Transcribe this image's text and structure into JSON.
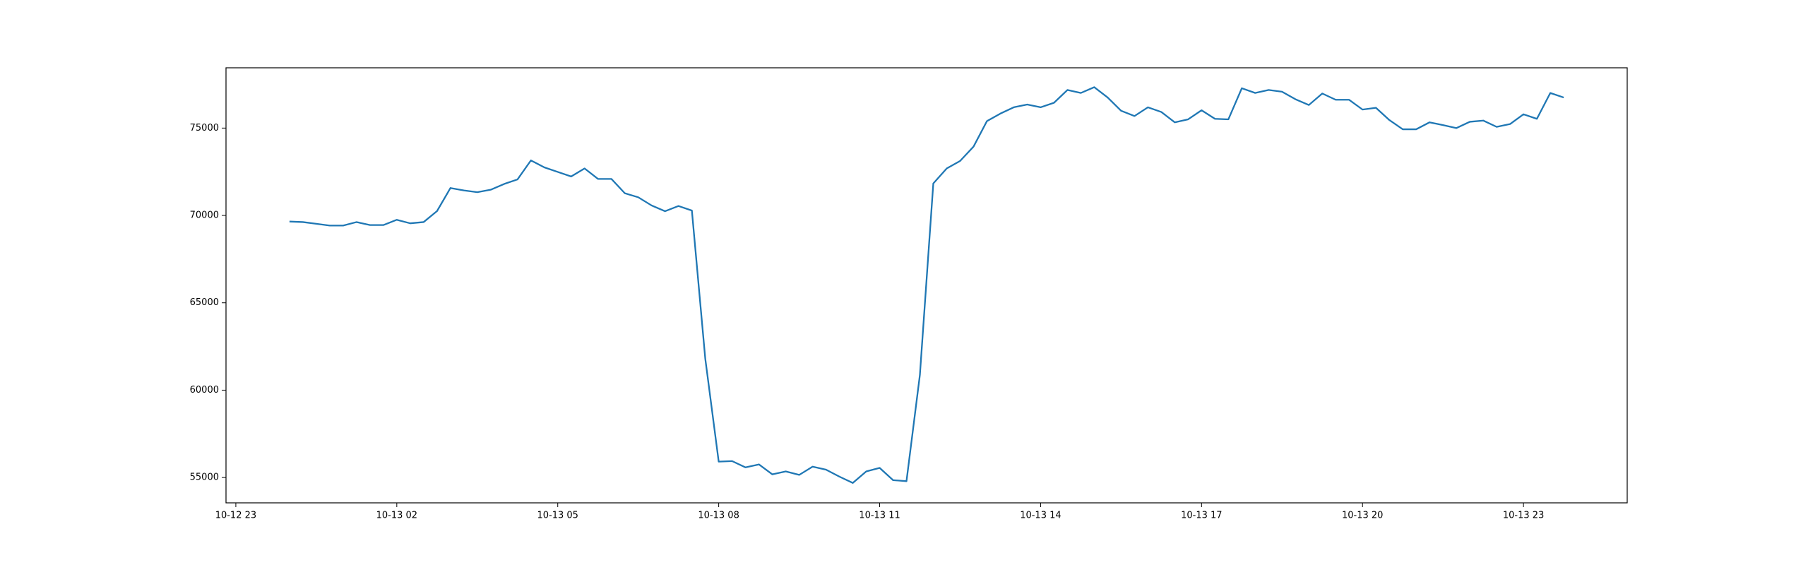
{
  "chart_data": {
    "type": "line",
    "x": [
      "10-13 00:00",
      "10-13 00:15",
      "10-13 00:30",
      "10-13 00:45",
      "10-13 01:00",
      "10-13 01:15",
      "10-13 01:30",
      "10-13 01:45",
      "10-13 02:00",
      "10-13 02:15",
      "10-13 02:30",
      "10-13 02:45",
      "10-13 03:00",
      "10-13 03:15",
      "10-13 03:30",
      "10-13 03:45",
      "10-13 04:00",
      "10-13 04:15",
      "10-13 04:30",
      "10-13 04:45",
      "10-13 05:00",
      "10-13 05:15",
      "10-13 05:30",
      "10-13 05:45",
      "10-13 06:00",
      "10-13 06:15",
      "10-13 06:30",
      "10-13 06:45",
      "10-13 07:00",
      "10-13 07:15",
      "10-13 07:30",
      "10-13 07:45",
      "10-13 08:00",
      "10-13 08:15",
      "10-13 08:30",
      "10-13 08:45",
      "10-13 09:00",
      "10-13 09:15",
      "10-13 09:30",
      "10-13 09:45",
      "10-13 10:00",
      "10-13 10:15",
      "10-13 10:30",
      "10-13 10:45",
      "10-13 11:00",
      "10-13 11:15",
      "10-13 11:30",
      "10-13 11:45",
      "10-13 12:00",
      "10-13 12:15",
      "10-13 12:30",
      "10-13 12:45",
      "10-13 13:00",
      "10-13 13:15",
      "10-13 13:30",
      "10-13 13:45",
      "10-13 14:00",
      "10-13 14:15",
      "10-13 14:30",
      "10-13 14:45",
      "10-13 15:00",
      "10-13 15:15",
      "10-13 15:30",
      "10-13 15:45",
      "10-13 16:00",
      "10-13 16:15",
      "10-13 16:30",
      "10-13 16:45",
      "10-13 17:00",
      "10-13 17:15",
      "10-13 17:30",
      "10-13 17:45",
      "10-13 18:00",
      "10-13 18:15",
      "10-13 18:30",
      "10-13 18:45",
      "10-13 19:00",
      "10-13 19:15",
      "10-13 19:30",
      "10-13 19:45",
      "10-13 20:00",
      "10-13 20:15",
      "10-13 20:30",
      "10-13 20:45",
      "10-13 21:00",
      "10-13 21:15",
      "10-13 21:30",
      "10-13 21:45",
      "10-13 22:00",
      "10-13 22:15",
      "10-13 22:30",
      "10-13 22:45",
      "10-13 23:00",
      "10-13 23:15",
      "10-13 23:30",
      "10-13 23:45"
    ],
    "series": [
      {
        "color": "#1f77b4",
        "values": [
          69650,
          69620,
          69520,
          69420,
          69420,
          69620,
          69450,
          69450,
          69750,
          69550,
          69620,
          70250,
          71570,
          71430,
          71330,
          71470,
          71800,
          72060,
          73150,
          72750,
          72490,
          72230,
          72690,
          72090,
          72090,
          71270,
          71040,
          70570,
          70240,
          70540,
          70280,
          61790,
          55910,
          55940,
          55580,
          55750,
          55180,
          55350,
          55150,
          55620,
          55450,
          55050,
          54690,
          55350,
          55550,
          54850,
          54790,
          60870,
          71830,
          72690,
          73120,
          73940,
          75400,
          75830,
          76190,
          76350,
          76190,
          76450,
          77180,
          77010,
          77340,
          76750,
          75990,
          75690,
          76190,
          75920,
          75330,
          75500,
          76020,
          75530,
          75500,
          77280,
          77010,
          77180,
          77080,
          76650,
          76320,
          76980,
          76620,
          76620,
          76060,
          76160,
          75460,
          74930,
          74930,
          75330,
          75170,
          75000,
          75360,
          75430,
          75070,
          75230,
          75790,
          75530,
          77010,
          76750
        ]
      }
    ],
    "xlim": [
      "10-12 22:49",
      "10-14 00:56"
    ],
    "xticks": [
      {
        "value": "10-12 23:00",
        "label": "10-12 23"
      },
      {
        "value": "10-13 02:00",
        "label": "10-13 02"
      },
      {
        "value": "10-13 05:00",
        "label": "10-13 05"
      },
      {
        "value": "10-13 08:00",
        "label": "10-13 08"
      },
      {
        "value": "10-13 11:00",
        "label": "10-13 11"
      },
      {
        "value": "10-13 14:00",
        "label": "10-13 14"
      },
      {
        "value": "10-13 17:00",
        "label": "10-13 17"
      },
      {
        "value": "10-13 20:00",
        "label": "10-13 20"
      },
      {
        "value": "10-13 23:00",
        "label": "10-13 23"
      }
    ],
    "ylim": [
      53550,
      78450
    ],
    "yticks": [
      55000,
      60000,
      65000,
      70000,
      75000
    ]
  }
}
